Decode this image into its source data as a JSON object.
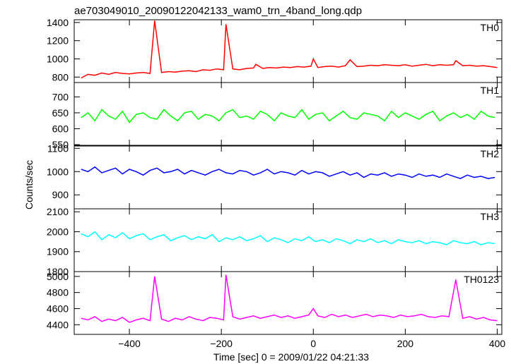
{
  "chart_data": {
    "type": "line",
    "title": "ae703049010_20090122042133_wam0_trn_4band_long.qdp",
    "xlabel": "Time [sec] 0 = 2009/01/22 04:21:33",
    "ylabel": "Counts/sec",
    "xlim": [
      -520,
      410
    ],
    "x_ticks": [
      -400,
      -200,
      0,
      200,
      400
    ],
    "x_tick_labels": [
      "−400",
      "−200",
      "0",
      "200",
      "400"
    ],
    "panels": [
      {
        "name": "TH0",
        "color": "#ff0000",
        "ylim": [
          740,
          1430
        ],
        "y_ticks": [
          800,
          1000,
          1200,
          1400
        ],
        "x": [
          -505,
          -490,
          -475,
          -460,
          -445,
          -430,
          -415,
          -400,
          -385,
          -370,
          -355,
          -345,
          -330,
          -315,
          -300,
          -285,
          -270,
          -255,
          -240,
          -225,
          -210,
          -195,
          -190,
          -175,
          -160,
          -145,
          -130,
          -125,
          -110,
          -95,
          -80,
          -65,
          -50,
          -35,
          -20,
          -5,
          0,
          10,
          25,
          40,
          55,
          70,
          80,
          95,
          110,
          125,
          140,
          155,
          170,
          185,
          200,
          215,
          230,
          245,
          260,
          275,
          290,
          305,
          310,
          325,
          340,
          355,
          370,
          385,
          400
        ],
        "y": [
          790,
          830,
          820,
          845,
          830,
          850,
          840,
          835,
          845,
          850,
          840,
          1420,
          850,
          860,
          855,
          865,
          870,
          860,
          880,
          875,
          890,
          880,
          1380,
          890,
          880,
          895,
          900,
          940,
          895,
          905,
          900,
          910,
          905,
          915,
          910,
          920,
          1000,
          905,
          915,
          920,
          910,
          925,
          990,
          915,
          920,
          930,
          925,
          935,
          930,
          925,
          935,
          920,
          930,
          940,
          925,
          935,
          930,
          935,
          980,
          925,
          930,
          920,
          925,
          915,
          905
        ]
      },
      {
        "name": "TH1",
        "color": "#00ff00",
        "ylim": [
          548,
          745
        ],
        "y_ticks": [
          550,
          600,
          650,
          700
        ],
        "x": [
          -505,
          -490,
          -475,
          -460,
          -445,
          -430,
          -415,
          -400,
          -385,
          -370,
          -355,
          -340,
          -325,
          -310,
          -295,
          -280,
          -265,
          -250,
          -235,
          -220,
          -205,
          -190,
          -175,
          -160,
          -145,
          -130,
          -115,
          -100,
          -85,
          -70,
          -55,
          -40,
          -25,
          -10,
          5,
          20,
          35,
          50,
          65,
          80,
          95,
          110,
          125,
          140,
          155,
          170,
          185,
          200,
          215,
          230,
          245,
          260,
          275,
          290,
          305,
          320,
          335,
          350,
          365,
          380,
          395
        ],
        "y": [
          635,
          650,
          625,
          660,
          640,
          630,
          655,
          620,
          645,
          650,
          635,
          630,
          660,
          640,
          625,
          650,
          655,
          630,
          645,
          640,
          625,
          650,
          660,
          635,
          640,
          630,
          655,
          645,
          625,
          650,
          640,
          635,
          660,
          630,
          645,
          650,
          625,
          640,
          655,
          635,
          630,
          650,
          645,
          640,
          625,
          655,
          635,
          650,
          640,
          630,
          645,
          655,
          625,
          640,
          650,
          635,
          645,
          630,
          655,
          640,
          635
        ]
      },
      {
        "name": "TH2",
        "color": "#0000ff",
        "ylim": [
          840,
          1110
        ],
        "y_ticks": [
          900,
          1000,
          1100
        ],
        "x": [
          -505,
          -490,
          -475,
          -460,
          -445,
          -430,
          -415,
          -400,
          -385,
          -370,
          -355,
          -340,
          -325,
          -310,
          -295,
          -280,
          -265,
          -250,
          -235,
          -220,
          -205,
          -190,
          -175,
          -160,
          -145,
          -130,
          -115,
          -100,
          -85,
          -70,
          -55,
          -40,
          -25,
          -10,
          5,
          20,
          35,
          50,
          65,
          80,
          95,
          110,
          125,
          140,
          155,
          170,
          185,
          200,
          215,
          230,
          245,
          260,
          275,
          290,
          305,
          320,
          335,
          350,
          365,
          380,
          395
        ],
        "y": [
          1010,
          1000,
          1020,
          995,
          1005,
          1015,
          990,
          1010,
          1000,
          985,
          1005,
          1015,
          995,
          1000,
          1010,
          990,
          1005,
          995,
          985,
          1000,
          1010,
          995,
          990,
          1005,
          1000,
          985,
          995,
          1010,
          990,
          1000,
          995,
          985,
          1005,
          990,
          1000,
          995,
          980,
          990,
          1000,
          985,
          995,
          975,
          990,
          985,
          995,
          980,
          990,
          985,
          975,
          990,
          980,
          985,
          975,
          990,
          980,
          970,
          985,
          975,
          980,
          970,
          975
        ]
      },
      {
        "name": "TH3",
        "color": "#00ffff",
        "ylim": [
          1800,
          2115
        ],
        "y_ticks": [
          1800,
          1900,
          2000,
          2100
        ],
        "x": [
          -505,
          -490,
          -475,
          -460,
          -445,
          -430,
          -415,
          -400,
          -385,
          -370,
          -355,
          -340,
          -325,
          -310,
          -295,
          -280,
          -265,
          -250,
          -235,
          -220,
          -205,
          -190,
          -175,
          -160,
          -145,
          -130,
          -115,
          -100,
          -85,
          -70,
          -55,
          -40,
          -25,
          -10,
          5,
          20,
          35,
          50,
          65,
          80,
          95,
          110,
          125,
          140,
          155,
          170,
          185,
          200,
          215,
          230,
          245,
          260,
          275,
          290,
          305,
          320,
          335,
          350,
          365,
          380,
          395
        ],
        "y": [
          1990,
          1975,
          2000,
          1960,
          1985,
          1970,
          1995,
          1965,
          1980,
          1990,
          1960,
          1975,
          1985,
          1955,
          1970,
          1980,
          1960,
          1975,
          1965,
          1985,
          1950,
          1970,
          1960,
          1975,
          1955,
          1965,
          1980,
          1950,
          1970,
          1960,
          1945,
          1965,
          1955,
          1975,
          1950,
          1960,
          1945,
          1965,
          1955,
          1940,
          1960,
          1950,
          1965,
          1945,
          1955,
          1940,
          1960,
          1950,
          1945,
          1955,
          1940,
          1950,
          1945,
          1935,
          1955,
          1945,
          1940,
          1950,
          1935,
          1945,
          1940
        ]
      },
      {
        "name": "TH0123",
        "color": "#ff00ff",
        "ylim": [
          4280,
          5060
        ],
        "y_ticks": [
          4400,
          4600,
          4800,
          5000
        ],
        "x": [
          -505,
          -490,
          -475,
          -460,
          -445,
          -430,
          -415,
          -400,
          -385,
          -370,
          -355,
          -345,
          -330,
          -315,
          -300,
          -285,
          -270,
          -255,
          -240,
          -225,
          -210,
          -195,
          -190,
          -175,
          -160,
          -145,
          -130,
          -115,
          -100,
          -85,
          -70,
          -55,
          -40,
          -25,
          -10,
          0,
          10,
          25,
          40,
          55,
          70,
          85,
          100,
          115,
          130,
          145,
          160,
          175,
          190,
          205,
          220,
          235,
          250,
          265,
          280,
          295,
          310,
          325,
          340,
          355,
          370,
          385,
          400
        ],
        "y": [
          4480,
          4460,
          4500,
          4440,
          4470,
          4450,
          4490,
          4430,
          4460,
          4480,
          4450,
          5000,
          4470,
          4440,
          4480,
          4460,
          4500,
          4470,
          4450,
          4490,
          4480,
          4460,
          5020,
          4500,
          4470,
          4490,
          4510,
          4480,
          4500,
          4520,
          4490,
          4510,
          4480,
          4500,
          4520,
          4600,
          4510,
          4490,
          4530,
          4500,
          4520,
          4490,
          4510,
          4530,
          4500,
          4520,
          4510,
          4490,
          4520,
          4500,
          4510,
          4530,
          4500,
          4490,
          4510,
          4500,
          4960,
          4480,
          4500,
          4470,
          4490,
          4460,
          4450
        ]
      }
    ]
  }
}
